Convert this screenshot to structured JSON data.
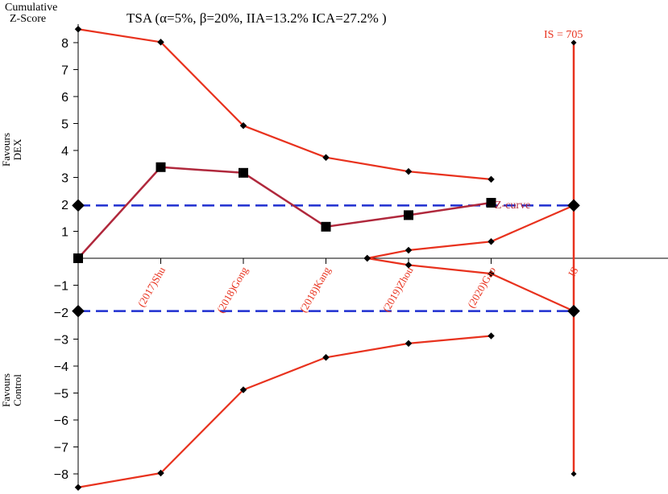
{
  "chart_data": {
    "type": "line",
    "title": "TSA  (α=5%,  β=20%, IIA=13.2%  ICA=27.2% )",
    "ylabel_line1": "Cumulative",
    "ylabel_line2": "Z-Score",
    "favours_top_line1": "Favours",
    "favours_top_line2": "DEX",
    "favours_bottom_line1": "Favours",
    "favours_bottom_line2": "Control",
    "x_categories": [
      "(2017)Shu",
      "(2018)Gong",
      "(2018)Kang",
      "(2019)Zhou",
      "(2020)Gao",
      "IS"
    ],
    "y_ticks": [
      8,
      7,
      6,
      5,
      4,
      3,
      2,
      1,
      -1,
      -2,
      -3,
      -4,
      -5,
      -6,
      -7,
      -8
    ],
    "y_tick_labels": [
      "8",
      "7",
      "6",
      "5",
      "4",
      "3",
      "2",
      "1",
      "−1",
      "−2",
      "−3",
      "−4",
      "−5",
      "−6",
      "−7",
      "−8"
    ],
    "ylim": [
      -8.5,
      8.6
    ],
    "xlim": [
      0,
      7.3
    ],
    "significance_lines": [
      1.96,
      -1.96
    ],
    "z_curve_label": "Z-curve",
    "is_label": "IS = 705",
    "is_position": 6,
    "colors": {
      "boundary": "#e8321e",
      "z_curve": "#b0283c",
      "significance": "#1f2fd0",
      "axis": "#000000",
      "category_label": "#e8321e"
    },
    "series": [
      {
        "name": "Z-curve",
        "x": [
          0,
          1,
          2,
          3,
          4,
          5
        ],
        "y": [
          0,
          3.38,
          3.17,
          1.17,
          1.6,
          2.06
        ]
      },
      {
        "name": "",
        "x": [
          0,
          1,
          2,
          3,
          4,
          5
        ],
        "y": [
          8.5,
          8.02,
          4.92,
          3.74,
          3.22,
          2.93
        ]
      },
      {
        "name": "",
        "x": [
          0,
          1,
          2,
          3,
          4,
          5
        ],
        "y": [
          -8.5,
          -7.97,
          -4.88,
          -3.68,
          -3.16,
          -2.88
        ]
      },
      {
        "name": "",
        "x": [
          3.5,
          4,
          5,
          6
        ],
        "y": [
          0,
          0.3,
          0.62,
          1.96
        ]
      },
      {
        "name": "",
        "x": [
          3.5,
          4,
          5,
          6
        ],
        "y": [
          0,
          -0.25,
          -0.57,
          -1.96
        ]
      }
    ]
  }
}
